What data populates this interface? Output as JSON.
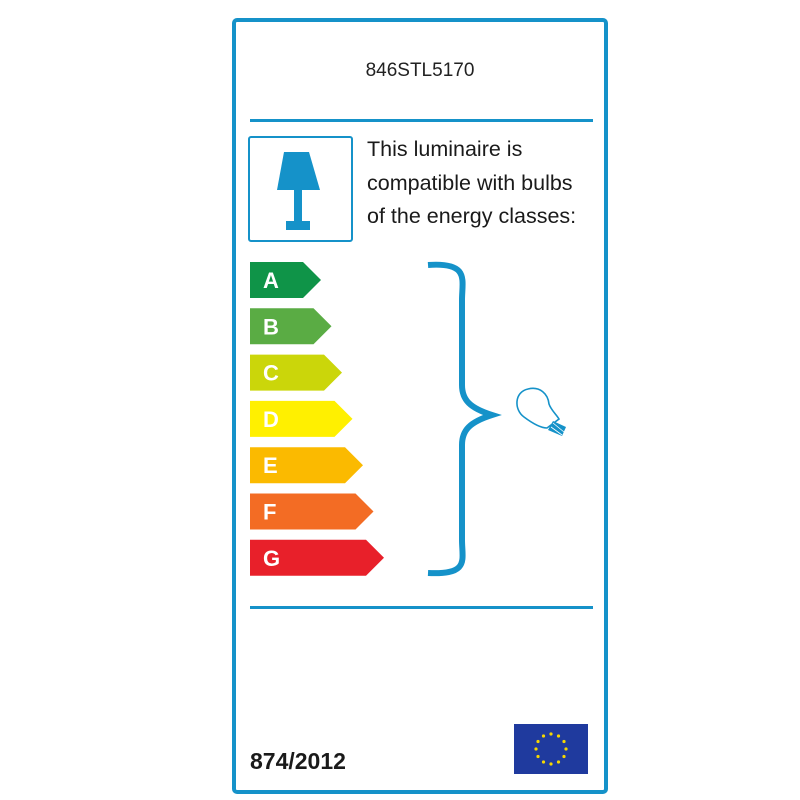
{
  "model": "846STL5170",
  "description": [
    "This luminaire is",
    "compatible with bulbs",
    "of the energy classes:"
  ],
  "energy_classes": [
    {
      "label": "A",
      "color": "#0f9448"
    },
    {
      "label": "B",
      "color": "#5aac44"
    },
    {
      "label": "C",
      "color": "#cbd60a"
    },
    {
      "label": "D",
      "color": "#fff000"
    },
    {
      "label": "E",
      "color": "#fbba00"
    },
    {
      "label": "F",
      "color": "#f36c24"
    },
    {
      "label": "G",
      "color": "#e8202a"
    }
  ],
  "icons": {
    "lamp": "table-lamp-icon",
    "bulb": "light-bulb-icon",
    "flag": "eu-flag"
  },
  "regulation": "874/2012",
  "accent_color": "#1592c9"
}
